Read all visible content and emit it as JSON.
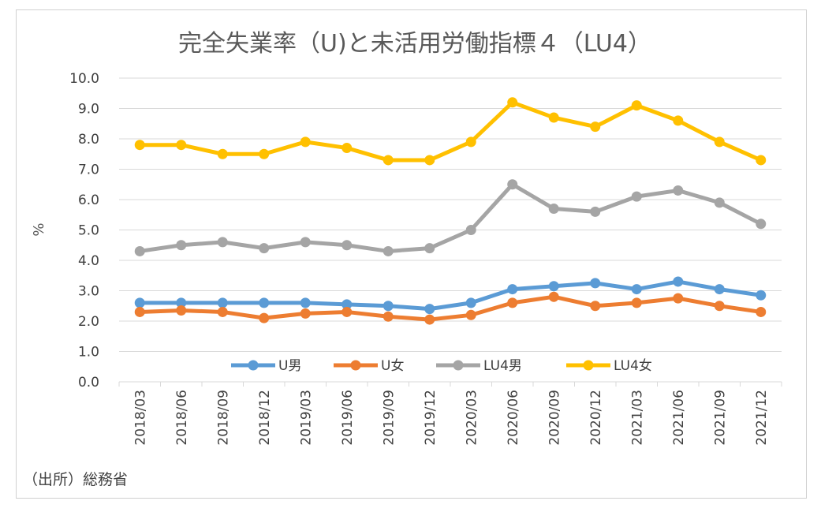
{
  "chart_data": {
    "type": "line",
    "title": "完全失業率（U)と未活用労働指標４（LU4）",
    "ylabel": "%",
    "xlabel": "",
    "ylim": [
      0,
      10
    ],
    "yticks": [
      "0.0",
      "1.0",
      "2.0",
      "3.0",
      "4.0",
      "5.0",
      "6.0",
      "7.0",
      "8.0",
      "9.0",
      "10.0"
    ],
    "grid": true,
    "legend_position": "bottom-inside",
    "categories": [
      "2018/03",
      "2018/06",
      "2018/09",
      "2018/12",
      "2019/03",
      "2019/06",
      "2019/09",
      "2019/12",
      "2020/03",
      "2020/06",
      "2020/09",
      "2020/12",
      "2021/03",
      "2021/06",
      "2021/09",
      "2021/12"
    ],
    "series": [
      {
        "name": "U男",
        "color": "#5B9BD5",
        "values": [
          2.6,
          2.6,
          2.6,
          2.6,
          2.6,
          2.55,
          2.5,
          2.4,
          2.6,
          3.05,
          3.15,
          3.25,
          3.05,
          3.3,
          3.05,
          2.85
        ]
      },
      {
        "name": "U女",
        "color": "#ED7D31",
        "values": [
          2.3,
          2.35,
          2.3,
          2.1,
          2.25,
          2.3,
          2.15,
          2.05,
          2.2,
          2.6,
          2.8,
          2.5,
          2.6,
          2.75,
          2.5,
          2.3
        ]
      },
      {
        "name": "LU4男",
        "color": "#A5A5A5",
        "values": [
          4.3,
          4.5,
          4.6,
          4.4,
          4.6,
          4.5,
          4.3,
          4.4,
          5.0,
          6.5,
          5.7,
          5.6,
          6.1,
          6.3,
          5.9,
          5.2
        ]
      },
      {
        "name": "LU4女",
        "color": "#FFC000",
        "values": [
          7.8,
          7.8,
          7.5,
          7.5,
          7.9,
          7.7,
          7.3,
          7.3,
          7.9,
          9.2,
          8.7,
          8.4,
          9.1,
          8.6,
          7.9,
          7.3
        ]
      }
    ]
  },
  "source_note": "（出所）総務省"
}
